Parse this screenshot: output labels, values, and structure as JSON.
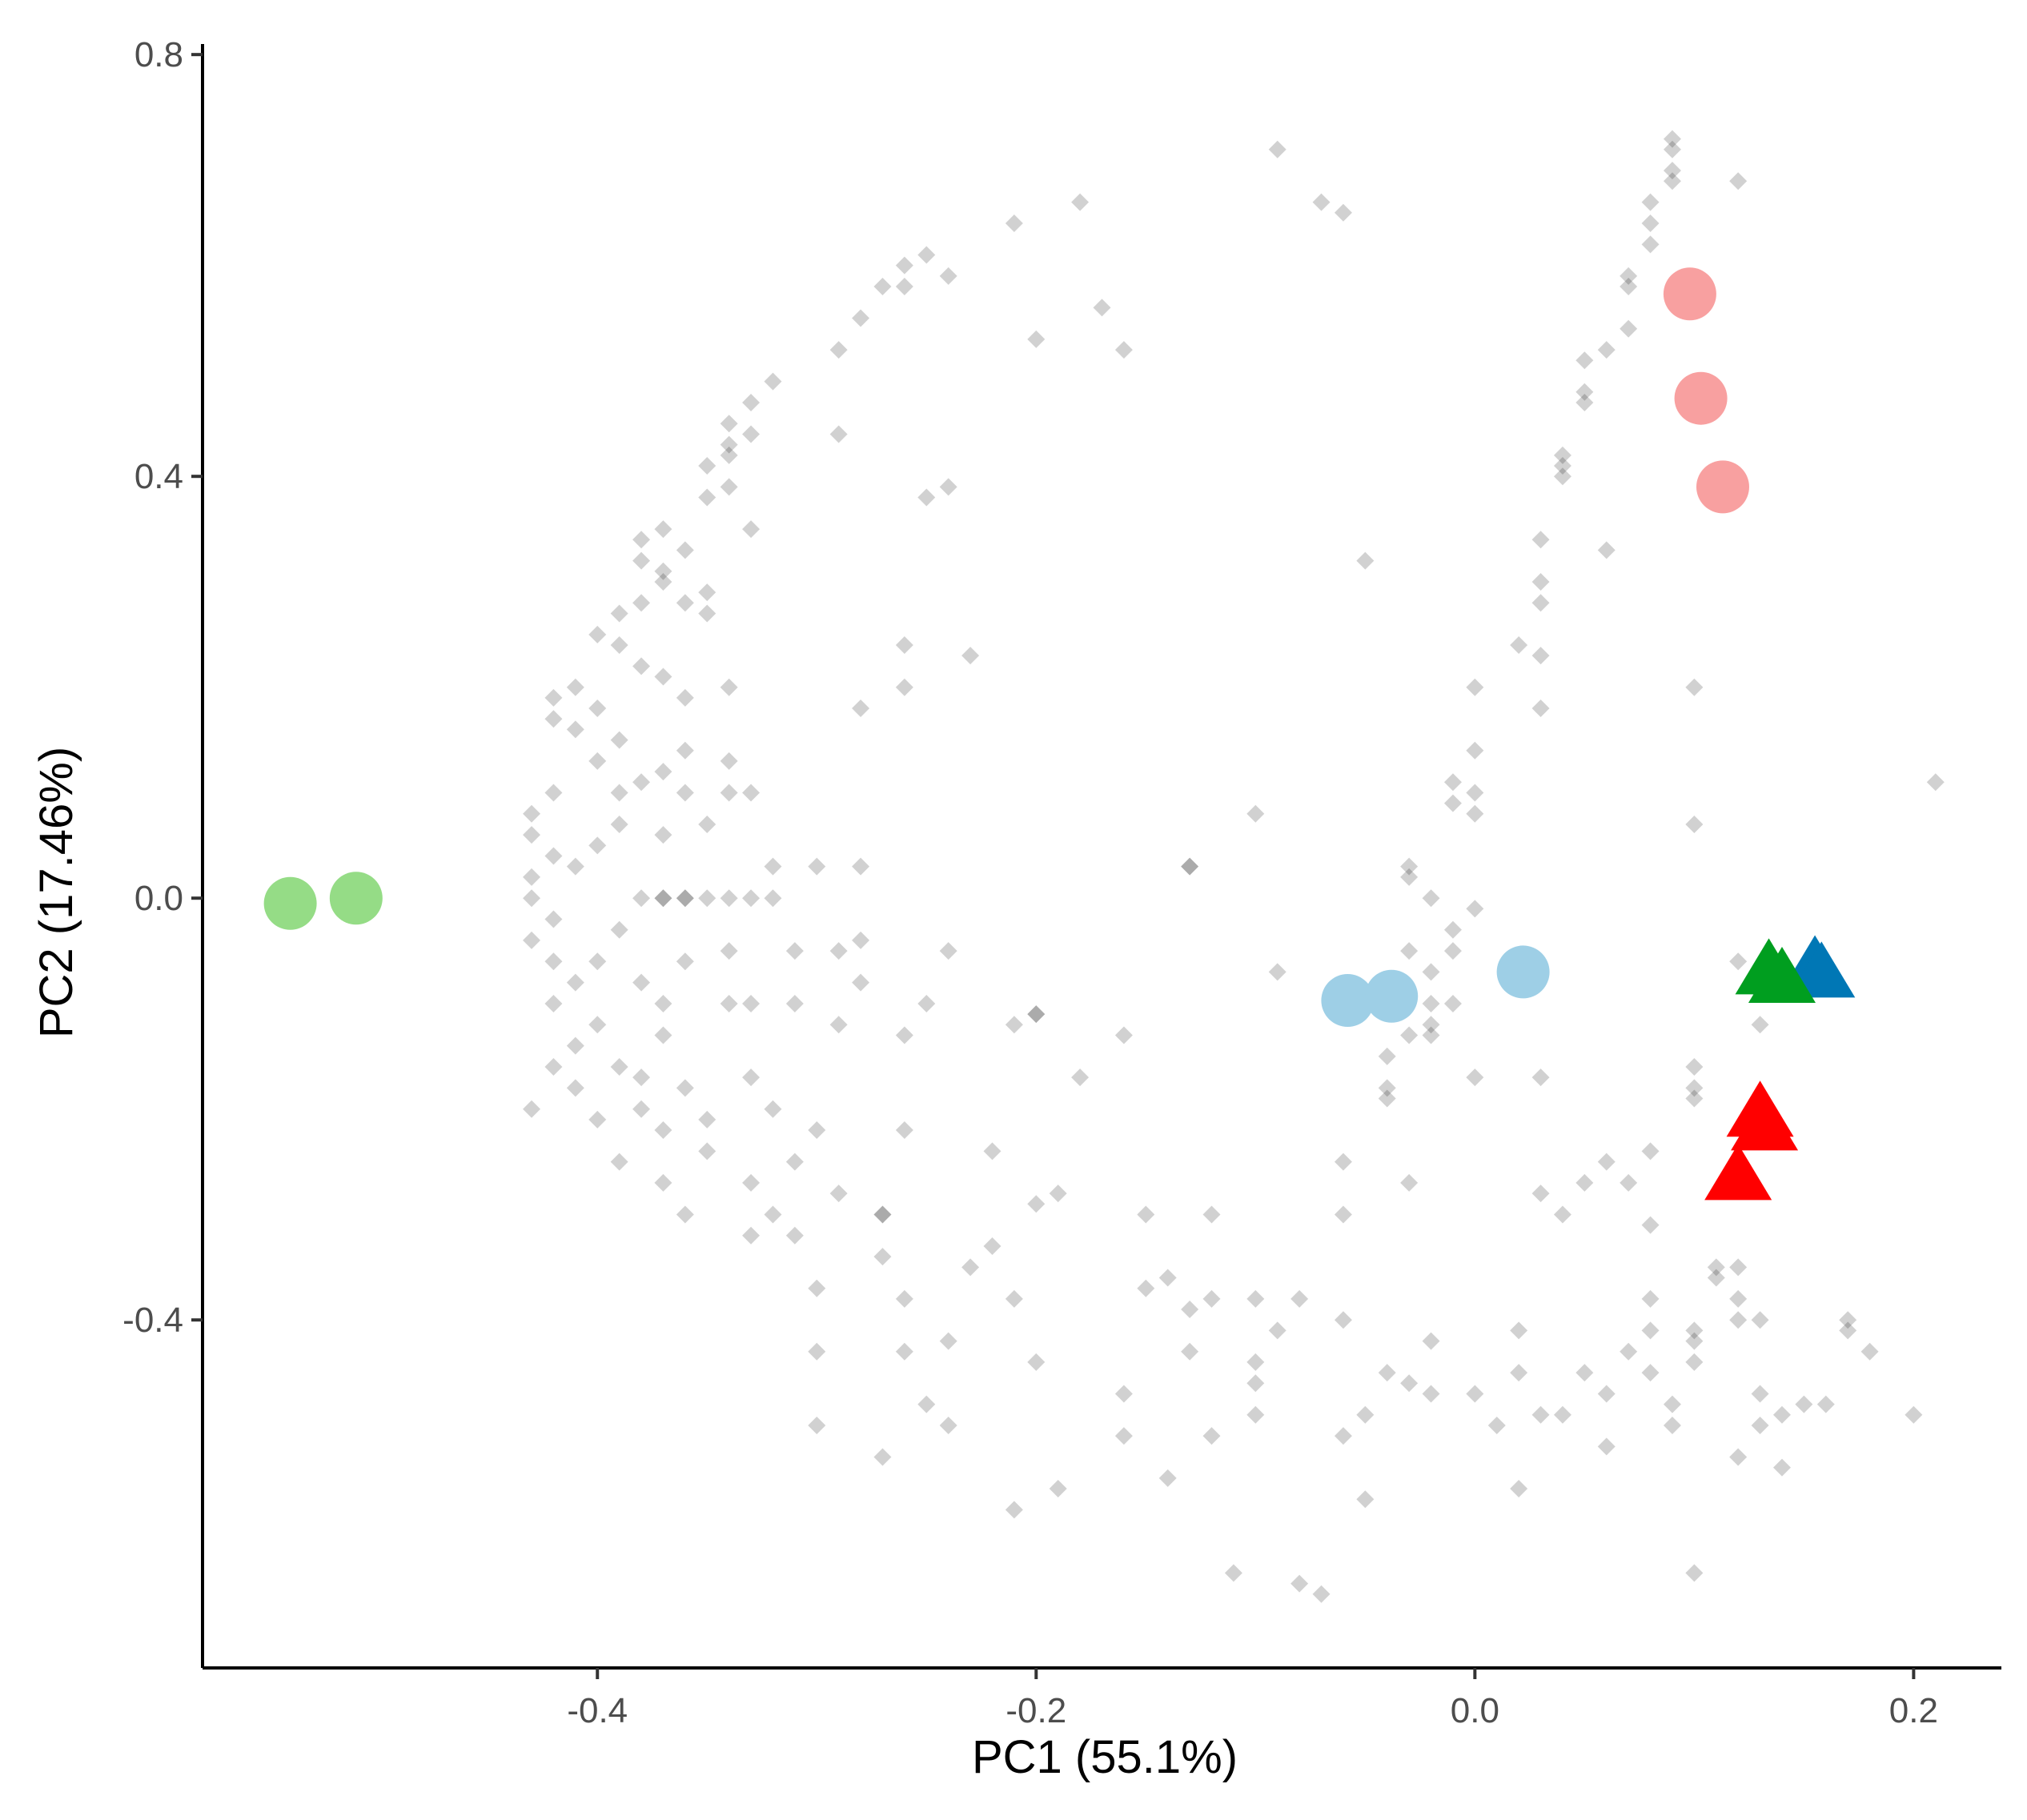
{
  "chart_data": {
    "type": "scatter",
    "xlabel": "PC1 (55.1%)",
    "ylabel": "PC2 (17.46%)",
    "xlim": [
      -0.58,
      0.24
    ],
    "ylim": [
      -0.73,
      0.81
    ],
    "x_ticks": [
      -0.4,
      -0.2,
      0.0,
      0.2
    ],
    "x_tick_labels": [
      "-0.4",
      "-0.2",
      "0.0",
      "0.2"
    ],
    "y_ticks": [
      -0.4,
      0.0,
      0.4,
      0.8
    ],
    "y_tick_labels": [
      "-0.4",
      "0.0",
      "0.4",
      "0.8"
    ],
    "grid": false,
    "legend": "none",
    "background_points": {
      "shape": "diamond",
      "color": "#000000",
      "opacity": 0.18,
      "points": [
        [
          -0.09,
          0.71
        ],
        [
          -0.18,
          0.66
        ],
        [
          -0.21,
          0.64
        ],
        [
          -0.07,
          0.66
        ],
        [
          -0.06,
          0.65
        ],
        [
          -0.25,
          0.61
        ],
        [
          -0.26,
          0.6
        ],
        [
          -0.24,
          0.59
        ],
        [
          -0.26,
          0.58
        ],
        [
          -0.27,
          0.58
        ],
        [
          -0.17,
          0.56
        ],
        [
          -0.28,
          0.55
        ],
        [
          -0.2,
          0.53
        ],
        [
          -0.16,
          0.52
        ],
        [
          -0.29,
          0.52
        ],
        [
          -0.32,
          0.49
        ],
        [
          -0.33,
          0.47
        ],
        [
          -0.34,
          0.45
        ],
        [
          -0.33,
          0.44
        ],
        [
          -0.29,
          0.44
        ],
        [
          -0.34,
          0.43
        ],
        [
          -0.34,
          0.42
        ],
        [
          -0.35,
          0.41
        ],
        [
          -0.34,
          0.39
        ],
        [
          -0.35,
          0.38
        ],
        [
          -0.25,
          0.38
        ],
        [
          -0.24,
          0.39
        ],
        [
          -0.33,
          0.35
        ],
        [
          -0.38,
          0.34
        ],
        [
          -0.37,
          0.35
        ],
        [
          -0.38,
          0.32
        ],
        [
          -0.36,
          0.33
        ],
        [
          -0.37,
          0.3
        ],
        [
          -0.37,
          0.31
        ],
        [
          -0.38,
          0.28
        ],
        [
          -0.39,
          0.27
        ],
        [
          -0.36,
          0.28
        ],
        [
          -0.35,
          0.29
        ],
        [
          -0.4,
          0.25
        ],
        [
          -0.39,
          0.24
        ],
        [
          -0.35,
          0.27
        ],
        [
          -0.38,
          0.22
        ],
        [
          -0.37,
          0.21
        ],
        [
          -0.34,
          0.2
        ],
        [
          -0.36,
          0.19
        ],
        [
          -0.26,
          0.24
        ],
        [
          -0.23,
          0.23
        ],
        [
          -0.26,
          0.2
        ],
        [
          -0.28,
          0.18
        ],
        [
          -0.41,
          0.2
        ],
        [
          -0.42,
          0.19
        ],
        [
          -0.42,
          0.17
        ],
        [
          -0.41,
          0.16
        ],
        [
          -0.4,
          0.18
        ],
        [
          -0.39,
          0.15
        ],
        [
          -0.4,
          0.13
        ],
        [
          -0.38,
          0.11
        ],
        [
          -0.39,
          0.1
        ],
        [
          -0.37,
          0.12
        ],
        [
          -0.36,
          0.14
        ],
        [
          -0.34,
          0.13
        ],
        [
          -0.34,
          0.1
        ],
        [
          -0.36,
          0.1
        ],
        [
          -0.33,
          0.1
        ],
        [
          -0.35,
          0.07
        ],
        [
          -0.37,
          0.06
        ],
        [
          -0.39,
          0.07
        ],
        [
          -0.4,
          0.05
        ],
        [
          -0.41,
          0.03
        ],
        [
          -0.42,
          0.1
        ],
        [
          -0.43,
          0.08
        ],
        [
          -0.43,
          0.06
        ],
        [
          -0.42,
          0.04
        ],
        [
          -0.43,
          0.02
        ],
        [
          -0.43,
          0.0
        ],
        [
          -0.42,
          -0.02
        ],
        [
          -0.43,
          -0.04
        ],
        [
          -0.42,
          -0.06
        ],
        [
          -0.41,
          -0.08
        ],
        [
          -0.42,
          -0.1
        ],
        [
          -0.4,
          -0.12
        ],
        [
          -0.41,
          -0.14
        ],
        [
          -0.39,
          -0.16
        ],
        [
          -0.42,
          -0.16
        ],
        [
          -0.41,
          -0.18
        ],
        [
          -0.43,
          -0.2
        ],
        [
          -0.4,
          -0.21
        ],
        [
          -0.4,
          -0.06
        ],
        [
          -0.39,
          -0.03
        ],
        [
          -0.38,
          -0.08
        ],
        [
          -0.37,
          -0.1
        ],
        [
          -0.36,
          -0.06
        ],
        [
          -0.37,
          -0.13
        ],
        [
          -0.38,
          -0.17
        ],
        [
          -0.36,
          -0.18
        ],
        [
          -0.38,
          -0.2
        ],
        [
          -0.37,
          -0.22
        ],
        [
          -0.39,
          -0.25
        ],
        [
          -0.37,
          -0.27
        ],
        [
          -0.35,
          -0.24
        ],
        [
          -0.35,
          -0.21
        ],
        [
          -0.36,
          -0.3
        ],
        [
          -0.33,
          -0.17
        ],
        [
          -0.34,
          -0.1
        ],
        [
          -0.33,
          -0.1
        ],
        [
          -0.31,
          -0.05
        ],
        [
          -0.29,
          -0.05
        ],
        [
          -0.34,
          -0.05
        ],
        [
          -0.32,
          0.0
        ],
        [
          -0.33,
          0.0
        ],
        [
          -0.34,
          0.0
        ],
        [
          -0.35,
          0.0
        ],
        [
          -0.37,
          0.0
        ],
        [
          -0.38,
          0.0
        ],
        [
          -0.36,
          0.0
        ],
        [
          -0.32,
          -0.2
        ],
        [
          -0.3,
          -0.22
        ],
        [
          -0.31,
          -0.1
        ],
        [
          -0.29,
          -0.12
        ],
        [
          -0.28,
          -0.08
        ],
        [
          -0.31,
          -0.32
        ],
        [
          -0.33,
          -0.27
        ],
        [
          -0.32,
          -0.3
        ],
        [
          -0.33,
          -0.32
        ],
        [
          -0.3,
          -0.37
        ],
        [
          -0.31,
          -0.25
        ],
        [
          -0.29,
          -0.28
        ],
        [
          -0.27,
          -0.3
        ],
        [
          -0.26,
          -0.22
        ],
        [
          -0.25,
          -0.1
        ],
        [
          -0.26,
          -0.13
        ],
        [
          -0.24,
          -0.05
        ],
        [
          -0.28,
          -0.04
        ],
        [
          -0.27,
          -0.3
        ],
        [
          -0.27,
          -0.34
        ],
        [
          -0.26,
          -0.38
        ],
        [
          -0.26,
          -0.43
        ],
        [
          -0.24,
          -0.42
        ],
        [
          -0.23,
          -0.35
        ],
        [
          -0.22,
          -0.33
        ],
        [
          -0.22,
          -0.24
        ],
        [
          -0.21,
          -0.12
        ],
        [
          -0.2,
          -0.11
        ],
        [
          -0.2,
          -0.11
        ],
        [
          -0.25,
          -0.48
        ],
        [
          -0.24,
          -0.5
        ],
        [
          -0.27,
          -0.53
        ],
        [
          -0.3,
          -0.43
        ],
        [
          -0.3,
          -0.5
        ],
        [
          -0.2,
          -0.44
        ],
        [
          -0.21,
          -0.38
        ],
        [
          -0.2,
          -0.29
        ],
        [
          -0.19,
          -0.28
        ],
        [
          -0.18,
          -0.17
        ],
        [
          -0.16,
          -0.13
        ],
        [
          -0.15,
          -0.3
        ],
        [
          -0.15,
          -0.37
        ],
        [
          -0.14,
          -0.36
        ],
        [
          -0.13,
          -0.39
        ],
        [
          -0.16,
          -0.47
        ],
        [
          -0.16,
          -0.51
        ],
        [
          -0.13,
          -0.43
        ],
        [
          -0.14,
          -0.55
        ],
        [
          -0.19,
          -0.56
        ],
        [
          -0.21,
          -0.58
        ],
        [
          -0.12,
          -0.3
        ],
        [
          -0.12,
          -0.38
        ],
        [
          -0.1,
          -0.38
        ],
        [
          -0.09,
          -0.41
        ],
        [
          -0.1,
          -0.44
        ],
        [
          -0.1,
          -0.46
        ],
        [
          -0.1,
          -0.49
        ],
        [
          -0.12,
          -0.51
        ],
        [
          -0.11,
          -0.64
        ],
        [
          -0.08,
          -0.65
        ],
        [
          -0.07,
          -0.66
        ],
        [
          -0.08,
          -0.38
        ],
        [
          -0.06,
          -0.4
        ],
        [
          -0.05,
          -0.49
        ],
        [
          -0.06,
          -0.51
        ],
        [
          -0.05,
          -0.57
        ],
        [
          -0.04,
          -0.45
        ],
        [
          -0.03,
          -0.46
        ],
        [
          -0.06,
          -0.25
        ],
        [
          -0.06,
          -0.3
        ],
        [
          -0.04,
          -0.19
        ],
        [
          -0.03,
          -0.27
        ],
        [
          -0.04,
          -0.18
        ],
        [
          -0.04,
          -0.15
        ],
        [
          -0.02,
          -0.12
        ],
        [
          -0.02,
          -0.13
        ],
        [
          -0.03,
          -0.13
        ],
        [
          -0.01,
          -0.1
        ],
        [
          -0.02,
          -0.42
        ],
        [
          -0.02,
          -0.47
        ],
        [
          0.0,
          -0.47
        ],
        [
          0.02,
          -0.45
        ],
        [
          0.02,
          -0.41
        ],
        [
          0.0,
          -0.17
        ],
        [
          0.03,
          -0.17
        ],
        [
          0.03,
          -0.28
        ],
        [
          0.04,
          -0.3
        ],
        [
          0.01,
          -0.5
        ],
        [
          0.02,
          -0.56
        ],
        [
          0.03,
          -0.49
        ],
        [
          0.04,
          -0.49
        ],
        [
          0.05,
          -0.45
        ],
        [
          0.06,
          -0.47
        ],
        [
          0.06,
          -0.52
        ],
        [
          0.05,
          -0.27
        ],
        [
          0.06,
          -0.25
        ],
        [
          0.07,
          -0.27
        ],
        [
          0.08,
          -0.31
        ],
        [
          0.08,
          -0.24
        ],
        [
          0.08,
          -0.38
        ],
        [
          0.08,
          -0.41
        ],
        [
          0.07,
          -0.43
        ],
        [
          0.08,
          -0.45
        ],
        [
          0.09,
          -0.48
        ],
        [
          0.09,
          -0.5
        ],
        [
          0.1,
          -0.41
        ],
        [
          0.1,
          -0.42
        ],
        [
          0.1,
          -0.44
        ],
        [
          0.11,
          -0.35
        ],
        [
          0.11,
          -0.36
        ],
        [
          0.12,
          -0.35
        ],
        [
          0.12,
          -0.38
        ],
        [
          0.12,
          -0.4
        ],
        [
          0.13,
          -0.4
        ],
        [
          0.13,
          -0.47
        ],
        [
          0.13,
          -0.5
        ],
        [
          0.12,
          -0.53
        ],
        [
          0.14,
          -0.49
        ],
        [
          0.15,
          -0.48
        ],
        [
          0.16,
          -0.48
        ],
        [
          0.17,
          -0.41
        ],
        [
          0.17,
          -0.4
        ],
        [
          0.18,
          -0.43
        ],
        [
          0.2,
          -0.49
        ],
        [
          0.14,
          -0.54
        ],
        [
          0.1,
          -0.64
        ],
        [
          0.1,
          -0.19
        ],
        [
          0.1,
          -0.18
        ],
        [
          0.1,
          -0.16
        ],
        [
          0.13,
          -0.12
        ],
        [
          0.21,
          0.11
        ],
        [
          0.1,
          0.2
        ],
        [
          0.1,
          0.07
        ],
        [
          0.06,
          0.33
        ],
        [
          0.03,
          0.28
        ],
        [
          0.03,
          0.3
        ],
        [
          0.03,
          0.23
        ],
        [
          0.02,
          0.24
        ],
        [
          0.0,
          0.2
        ],
        [
          0.0,
          0.14
        ],
        [
          -0.01,
          0.11
        ],
        [
          0.0,
          0.1
        ],
        [
          0.0,
          0.08
        ],
        [
          -0.01,
          0.09
        ],
        [
          -0.03,
          0.03
        ],
        [
          -0.02,
          0.0
        ],
        [
          -0.01,
          -0.03
        ],
        [
          0.0,
          -0.01
        ],
        [
          -0.01,
          -0.05
        ],
        [
          -0.02,
          -0.07
        ],
        [
          0.03,
          0.18
        ],
        [
          -0.03,
          0.02
        ],
        [
          -0.03,
          -0.05
        ],
        [
          -0.02,
          -0.1
        ],
        [
          -0.1,
          0.08
        ],
        [
          -0.13,
          0.03
        ],
        [
          -0.13,
          0.03
        ],
        [
          -0.09,
          -0.07
        ],
        [
          -0.3,
          0.03
        ],
        [
          -0.28,
          0.03
        ],
        [
          -0.32,
          0.03
        ],
        [
          -0.05,
          0.32
        ],
        [
          0.03,
          0.34
        ],
        [
          0.04,
          0.4
        ],
        [
          0.04,
          0.41
        ],
        [
          0.04,
          0.42
        ],
        [
          0.05,
          0.47
        ],
        [
          0.05,
          0.48
        ],
        [
          0.05,
          0.51
        ],
        [
          0.06,
          0.52
        ],
        [
          0.07,
          0.54
        ],
        [
          0.07,
          0.58
        ],
        [
          0.07,
          0.59
        ],
        [
          0.08,
          0.62
        ],
        [
          0.08,
          0.64
        ],
        [
          0.08,
          0.66
        ],
        [
          0.09,
          0.68
        ],
        [
          0.09,
          0.69
        ],
        [
          0.09,
          0.71
        ],
        [
          0.09,
          0.72
        ],
        [
          0.12,
          0.68
        ],
        [
          0.13,
          -0.09
        ],
        [
          0.12,
          -0.06
        ],
        [
          -0.36,
          0.0
        ],
        [
          -0.37,
          0.0
        ]
      ]
    },
    "series": [
      {
        "shape": "circle",
        "color": "#95dc86",
        "x": [
          -0.54,
          -0.51
        ],
        "y": [
          -0.005,
          0.0
        ]
      },
      {
        "shape": "circle",
        "color": "#f8a0a0",
        "x": [
          0.098,
          0.103,
          0.113
        ],
        "y": [
          0.573,
          0.474,
          0.39
        ]
      },
      {
        "shape": "circle",
        "color": "#9ecfe6",
        "x": [
          -0.058,
          -0.038,
          0.022
        ],
        "y": [
          -0.097,
          -0.093,
          -0.07
        ]
      },
      {
        "shape": "triangle",
        "color": "#0077b5",
        "x": [
          0.155,
          0.158
        ],
        "y": [
          -0.067,
          -0.073
        ]
      },
      {
        "shape": "triangle",
        "color": "#009e1f",
        "x": [
          0.134,
          0.14
        ],
        "y": [
          -0.07,
          -0.078
        ]
      },
      {
        "shape": "triangle",
        "color": "#ff0000",
        "x": [
          0.13,
          0.132,
          0.12
        ],
        "y": [
          -0.205,
          -0.218,
          -0.265
        ]
      }
    ]
  }
}
